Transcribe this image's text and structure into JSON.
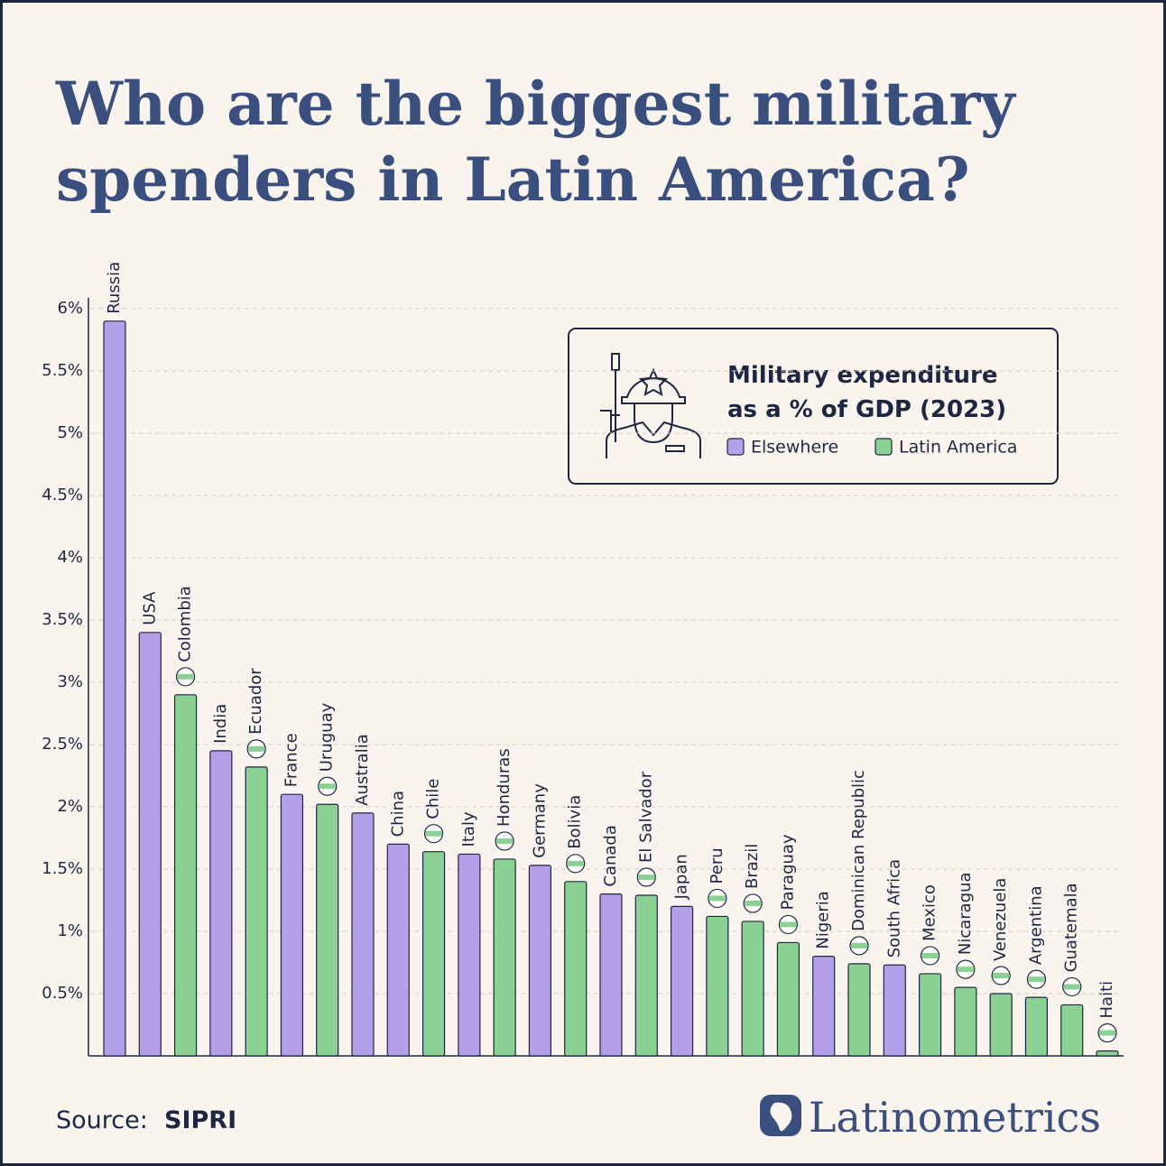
{
  "chart_data": {
    "type": "bar",
    "title": [
      "Who are the biggest military",
      "spenders in Latin America?"
    ],
    "legend_title": [
      "Military expenditure",
      "as a % of GDP (2023)"
    ],
    "categories": [
      "Russia",
      "USA",
      "Colombia",
      "India",
      "Ecuador",
      "France",
      "Uruguay",
      "Australia",
      "China",
      "Chile",
      "Italy",
      "Honduras",
      "Germany",
      "Bolivia",
      "Canada",
      "El Salvador",
      "Japan",
      "Peru",
      "Brazil",
      "Paraguay",
      "Nigeria",
      "Dominican Republic",
      "South Africa",
      "Mexico",
      "Nicaragua",
      "Venezuela",
      "Argentina",
      "Guatemala",
      "Haiti"
    ],
    "series": [
      {
        "name": "Elsewhere",
        "color": "#b3a0e8",
        "values": [
          5.9,
          3.4,
          null,
          2.45,
          null,
          2.1,
          null,
          1.95,
          1.7,
          null,
          1.62,
          null,
          1.53,
          null,
          1.3,
          null,
          1.2,
          null,
          null,
          null,
          0.8,
          null,
          0.73,
          null,
          null,
          null,
          null,
          null,
          null
        ]
      },
      {
        "name": "Latin America",
        "color": "#8ad193",
        "values": [
          null,
          null,
          2.9,
          null,
          2.32,
          null,
          2.02,
          null,
          null,
          1.64,
          null,
          1.58,
          null,
          1.4,
          null,
          1.29,
          null,
          1.12,
          1.08,
          0.91,
          null,
          0.74,
          null,
          0.66,
          0.55,
          0.5,
          0.47,
          0.41,
          0.04
        ]
      }
    ],
    "ylim": [
      0,
      6
    ],
    "yticks": [
      {
        "value": 0.5,
        "label": "0.5%"
      },
      {
        "value": 1,
        "label": "1%"
      },
      {
        "value": 1.5,
        "label": "1.5%"
      },
      {
        "value": 2,
        "label": "2%"
      },
      {
        "value": 2.5,
        "label": "2.5%"
      },
      {
        "value": 3,
        "label": "3%"
      },
      {
        "value": 3.5,
        "label": "3.5%"
      },
      {
        "value": 4,
        "label": "4%"
      },
      {
        "value": 4.5,
        "label": "4.5%"
      },
      {
        "value": 5,
        "label": "5%"
      },
      {
        "value": 5.5,
        "label": "5.5%"
      },
      {
        "value": 6,
        "label": "6%"
      }
    ],
    "grid": true,
    "source_label": "Source:",
    "source": "SIPRI",
    "brand": "Latinometrics"
  }
}
